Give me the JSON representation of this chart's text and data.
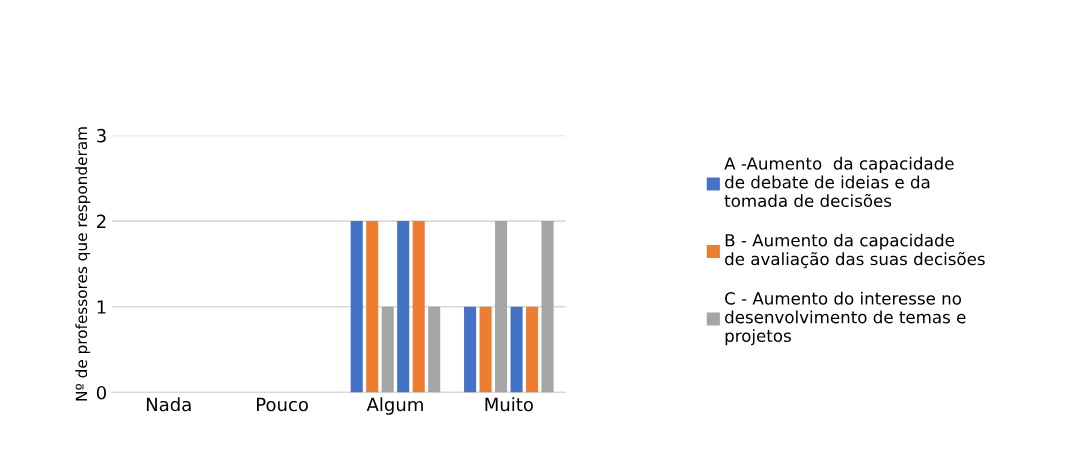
{
  "chart_data": {
    "type": "bar",
    "ylabel": "Nº de professores que responderam",
    "categories": [
      "Nada",
      "Pouco",
      "Algum",
      "Muito"
    ],
    "series": [
      {
        "name": "A -Aumento  da capacidade\nde debate de ideias e da\ntomada de decisões",
        "color": "#4472c4",
        "values": [
          0,
          0,
          2,
          1
        ]
      },
      {
        "name": "B - Aumento da capacidade\nde avaliação das suas decisões",
        "color": "#ed7d31",
        "values": [
          0,
          0,
          2,
          1
        ]
      },
      {
        "name": "C - Aumento do interesse no\ndesenvolvimento de temas e\nprojetos",
        "color": "#a5a5a5",
        "values": [
          0,
          0,
          1,
          2
        ]
      },
      {
        "color": "#4472c4",
        "values": [
          0,
          0,
          2,
          1
        ]
      },
      {
        "color": "#ed7d31",
        "values": [
          0,
          0,
          2,
          1
        ]
      },
      {
        "color": "#a5a5a5",
        "values": [
          0,
          0,
          1,
          2
        ]
      }
    ],
    "ylim": [
      0,
      3
    ],
    "yticks": [
      0,
      1,
      2,
      3
    ],
    "grid": "y",
    "legend": "right"
  }
}
